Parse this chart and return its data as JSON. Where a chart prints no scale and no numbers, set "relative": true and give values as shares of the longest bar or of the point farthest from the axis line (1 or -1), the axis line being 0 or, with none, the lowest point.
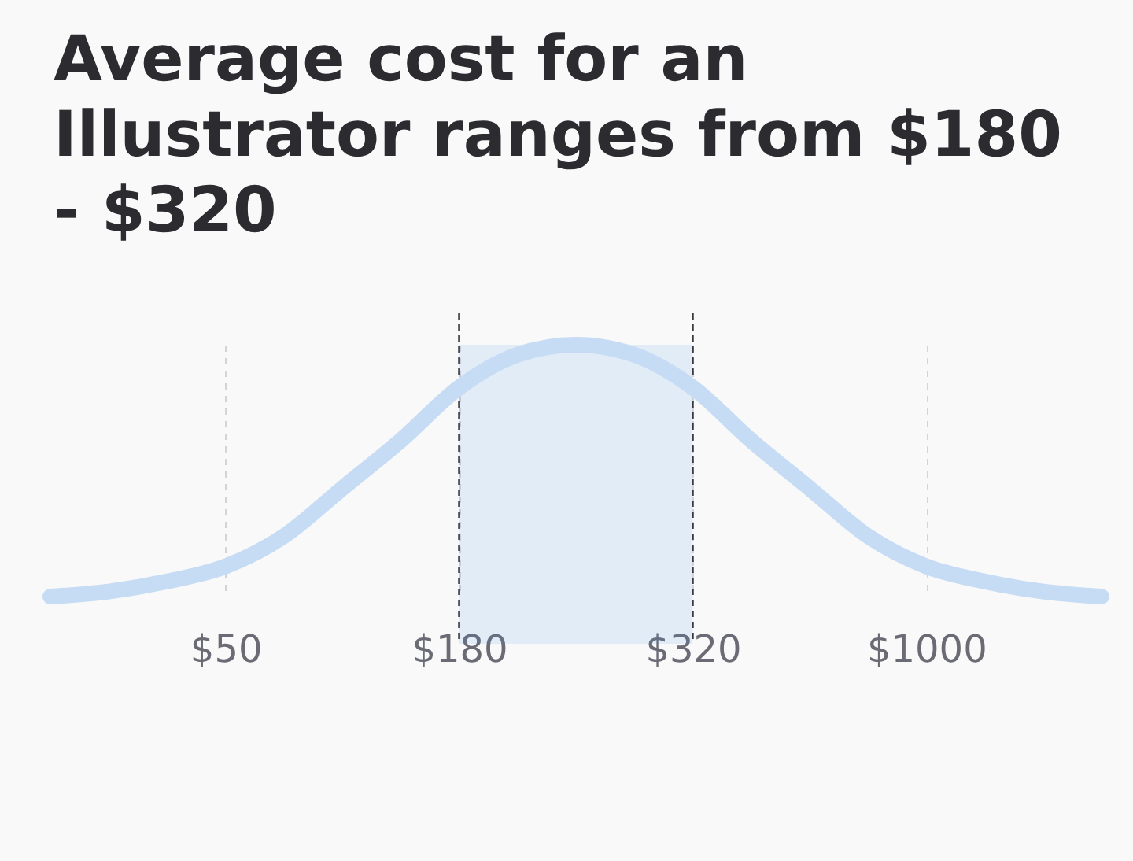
{
  "chart_data": {
    "type": "line",
    "title": "Average cost for an Illustrator ranges from $180 - $320",
    "categories": [
      null,
      null,
      null,
      "$50",
      null,
      null,
      null,
      "$180",
      null,
      null,
      null,
      "$320",
      null,
      null,
      null,
      "$1000",
      null,
      null,
      null
    ],
    "series": [
      {
        "color": "#c6dcf4",
        "values": [
          0,
          0.02,
          0.06,
          0.12,
          0.24,
          0.43,
          0.62,
          0.83,
          0.96,
          1,
          0.96,
          0.83,
          0.62,
          0.43,
          0.24,
          0.12,
          0.06,
          0.02,
          0
        ]
      }
    ],
    "relative": true,
    "grid": "x",
    "bands": [
      {
        "axis": "x",
        "from": "$180",
        "to": "$320",
        "color": "#4393e8"
      }
    ]
  }
}
